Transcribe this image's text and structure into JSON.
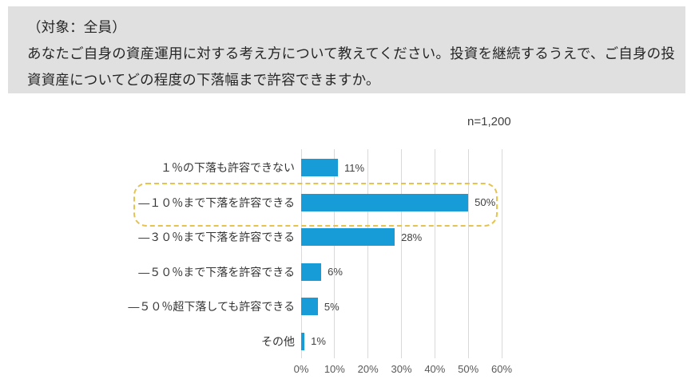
{
  "header": {
    "target": "（対象：全員）",
    "question_line1": "あなたご自身の資産運用に対する考え方について教えてください。投資を継続するうえで、ご自身の投",
    "question_line2": "資資産についてどの程度の下落幅まで許容できますか。"
  },
  "chart_data": {
    "type": "bar",
    "orientation": "horizontal",
    "title": "",
    "xlabel": "",
    "ylabel": "",
    "n_label": "n=1,200",
    "categories": [
      "１％の下落も許容できない",
      "―１０％まで下落を許容できる",
      "―３０％まで下落を許容できる",
      "―５０％まで下落を許容できる",
      "―５０％超下落しても許容できる",
      "その他"
    ],
    "values": [
      11,
      50,
      28,
      6,
      5,
      1
    ],
    "value_labels": [
      "11%",
      "50%",
      "28%",
      "6%",
      "5%",
      "1%"
    ],
    "x_ticks": [
      "0%",
      "10%",
      "20%",
      "30%",
      "40%",
      "50%",
      "60%"
    ],
    "xlim": [
      0,
      60
    ],
    "grid": true,
    "legend": "none",
    "bar_color": "#189CD8",
    "gridline_color": "#D9D9D9",
    "highlight": {
      "index": 1,
      "style": "dashed-rounded-outline",
      "color": "#E6C34F"
    }
  }
}
